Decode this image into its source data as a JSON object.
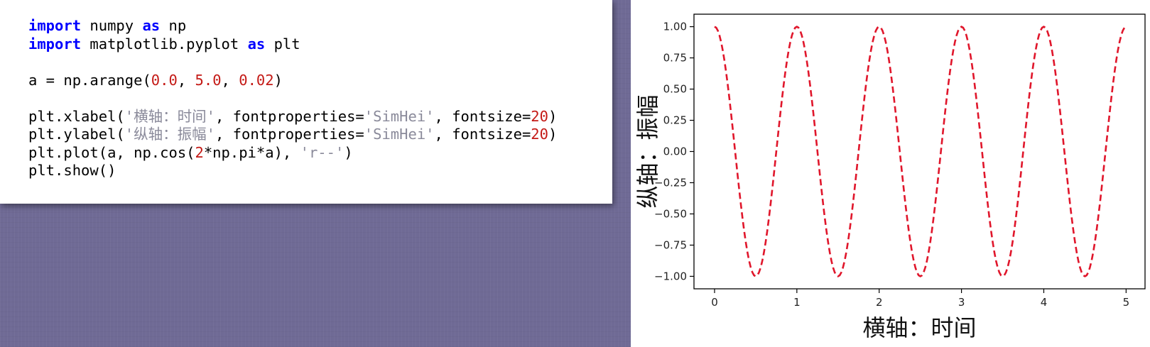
{
  "code": {
    "lines": [
      [
        {
          "t": "import",
          "c": "kw"
        },
        {
          "t": " numpy ",
          "c": ""
        },
        {
          "t": "as",
          "c": "kw"
        },
        {
          "t": " np",
          "c": ""
        }
      ],
      [
        {
          "t": "import",
          "c": "kw"
        },
        {
          "t": " matplotlib.pyplot ",
          "c": ""
        },
        {
          "t": "as",
          "c": "kw"
        },
        {
          "t": " plt",
          "c": ""
        }
      ],
      [],
      [
        {
          "t": "a = np.arange(",
          "c": ""
        },
        {
          "t": "0.0",
          "c": "num"
        },
        {
          "t": ", ",
          "c": ""
        },
        {
          "t": "5.0",
          "c": "num"
        },
        {
          "t": ", ",
          "c": ""
        },
        {
          "t": "0.02",
          "c": "num"
        },
        {
          "t": ")",
          "c": ""
        }
      ],
      [],
      [
        {
          "t": "plt.xlabel(",
          "c": ""
        },
        {
          "t": "'横轴：时间'",
          "c": "str"
        },
        {
          "t": ", fontproperties=",
          "c": ""
        },
        {
          "t": "'SimHei'",
          "c": "str"
        },
        {
          "t": ", fontsize=",
          "c": ""
        },
        {
          "t": "20",
          "c": "num"
        },
        {
          "t": ")",
          "c": ""
        }
      ],
      [
        {
          "t": "plt.ylabel(",
          "c": ""
        },
        {
          "t": "'纵轴：振幅'",
          "c": "str"
        },
        {
          "t": ", fontproperties=",
          "c": ""
        },
        {
          "t": "'SimHei'",
          "c": "str"
        },
        {
          "t": ", fontsize=",
          "c": ""
        },
        {
          "t": "20",
          "c": "num"
        },
        {
          "t": ")",
          "c": ""
        }
      ],
      [
        {
          "t": "plt.plot(a, np.cos(",
          "c": ""
        },
        {
          "t": "2",
          "c": "num"
        },
        {
          "t": "*np.pi*a), ",
          "c": ""
        },
        {
          "t": "'r--'",
          "c": "str"
        },
        {
          "t": ")",
          "c": ""
        }
      ],
      [
        {
          "t": "plt.show()",
          "c": ""
        }
      ]
    ]
  },
  "chart_data": {
    "type": "line",
    "xlabel": "横轴：时间",
    "ylabel": "纵轴：振幅",
    "title": "",
    "function": "cos(2*pi*x)",
    "x_range": [
      0.0,
      5.0
    ],
    "x_step": 0.02,
    "xlim": [
      -0.25,
      5.23
    ],
    "ylim": [
      -1.1,
      1.1
    ],
    "xticks": [
      0,
      1,
      2,
      3,
      4,
      5
    ],
    "xtick_labels": [
      "0",
      "1",
      "2",
      "3",
      "4",
      "5"
    ],
    "yticks": [
      1.0,
      0.75,
      0.5,
      0.25,
      0.0,
      -0.25,
      -0.5,
      -0.75,
      -1.0
    ],
    "ytick_labels": [
      "1.00",
      "0.75",
      "0.50",
      "0.25",
      "0.00",
      "−0.25",
      "−0.50",
      "−0.75",
      "−1.00"
    ],
    "grid": false,
    "series": [
      {
        "line_color": "#e0162b",
        "line_style": "dashed"
      }
    ]
  }
}
